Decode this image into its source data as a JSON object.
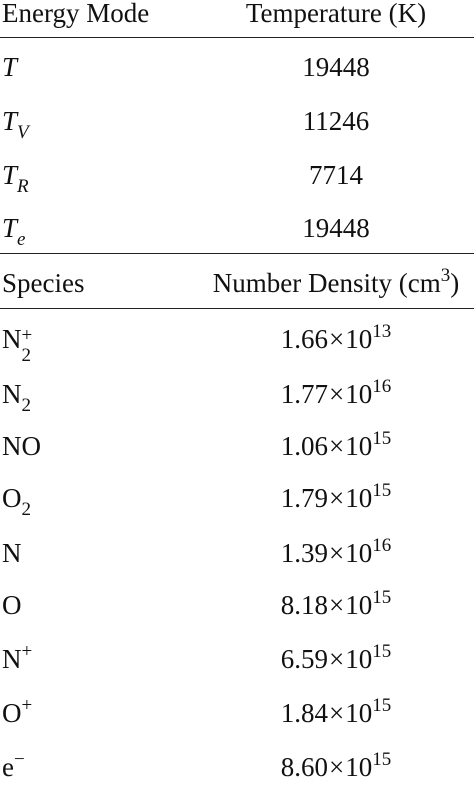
{
  "table": {
    "temperature_header": {
      "col1": "Energy Mode",
      "col2": "Temperature (K)"
    },
    "temperature_rows": [
      {
        "symbol": "T",
        "subscript": "",
        "value": "19448"
      },
      {
        "symbol": "T",
        "subscript": "V",
        "value": "11246"
      },
      {
        "symbol": "T",
        "subscript": "R",
        "value": "7714"
      },
      {
        "symbol": "T",
        "subscript": "e",
        "value": "19448"
      }
    ],
    "density_header": {
      "col1": "Species",
      "col2_text": "Number Density (cm",
      "col2_sup": "3",
      "col2_close": ")"
    },
    "density_rows": [
      {
        "species": "N",
        "species_sub": "2",
        "species_sup": "+",
        "mantissa": "1.66",
        "times": "×",
        "base": "10",
        "exponent": "13"
      },
      {
        "species": "N",
        "species_sub": "2",
        "species_sup": "",
        "mantissa": "1.77",
        "times": "×",
        "base": "10",
        "exponent": "16"
      },
      {
        "species": "NO",
        "species_sub": "",
        "species_sup": "",
        "mantissa": "1.06",
        "times": "×",
        "base": "10",
        "exponent": "15"
      },
      {
        "species": "O",
        "species_sub": "2",
        "species_sup": "",
        "mantissa": "1.79",
        "times": "×",
        "base": "10",
        "exponent": "15"
      },
      {
        "species": "N",
        "species_sub": "",
        "species_sup": "",
        "mantissa": "1.39",
        "times": "×",
        "base": "10",
        "exponent": "16"
      },
      {
        "species": "O",
        "species_sub": "",
        "species_sup": "",
        "mantissa": "8.18",
        "times": "×",
        "base": "10",
        "exponent": "15"
      },
      {
        "species": "N",
        "species_sub": "",
        "species_sup": "+",
        "mantissa": "6.59",
        "times": "×",
        "base": "10",
        "exponent": "15"
      },
      {
        "species": "O",
        "species_sub": "",
        "species_sup": "+",
        "mantissa": "1.84",
        "times": "×",
        "base": "10",
        "exponent": "15"
      },
      {
        "species": "e",
        "species_sub": "",
        "species_sup": "−",
        "mantissa": "8.60",
        "times": "×",
        "base": "10",
        "exponent": "15"
      }
    ]
  }
}
